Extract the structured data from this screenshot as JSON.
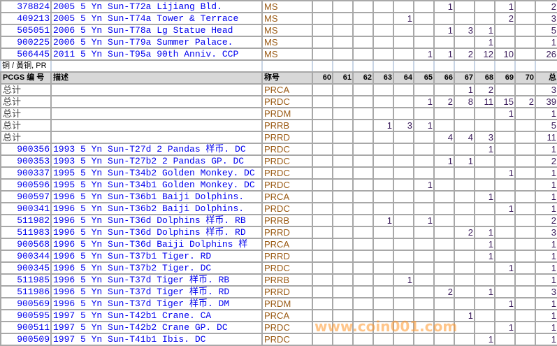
{
  "grades": [
    "60",
    "61",
    "62",
    "63",
    "64",
    "65",
    "66",
    "67",
    "68",
    "69",
    "70"
  ],
  "top_rows": [
    {
      "id": "378824",
      "desc": "2005 5 Yn Sun-T72a Lijiang Bld.",
      "grade": "MS",
      "counts": {
        "66": "1",
        "69": "1"
      },
      "total": "2"
    },
    {
      "id": "409213",
      "desc": "2005 5 Yn Sun-T74a Tower & Terrace",
      "grade": "MS",
      "counts": {
        "64": "1",
        "69": "2"
      },
      "total": "3"
    },
    {
      "id": "505051",
      "desc": "2006 5 Yn Sun-T78a Lg Statue Head",
      "grade": "MS",
      "counts": {
        "66": "1",
        "67": "3",
        "68": "1"
      },
      "total": "5"
    },
    {
      "id": "900225",
      "desc": "2006 5 Yn Sun-T79a Summer Palace.",
      "grade": "MS",
      "counts": {
        "68": "1"
      },
      "total": "1"
    },
    {
      "id": "506445",
      "desc": "2011 5 Yn Sun-T95a 90th Anniv. CCP",
      "grade": "MS",
      "counts": {
        "65": "1",
        "66": "1",
        "67": "2",
        "68": "12",
        "69": "10"
      },
      "total": "26"
    }
  ],
  "section_label": "铜 / 黃铜, PR",
  "header": {
    "id": "PCGS 编 号",
    "desc": "描述",
    "grade": "称号",
    "total": "总"
  },
  "summary_rows": [
    {
      "label": "总计",
      "grade": "PRCA",
      "counts": {
        "67": "1",
        "68": "2"
      },
      "total": "3"
    },
    {
      "label": "总计",
      "grade": "PRDC",
      "counts": {
        "65": "1",
        "66": "2",
        "67": "8",
        "68": "11",
        "69": "15",
        "70": "2"
      },
      "total": "39"
    },
    {
      "label": "总计",
      "grade": "PRDM",
      "counts": {
        "69": "1"
      },
      "total": "1"
    },
    {
      "label": "总计",
      "grade": "PRRB",
      "counts": {
        "63": "1",
        "64": "3",
        "65": "1"
      },
      "total": "5"
    },
    {
      "label": "总计",
      "grade": "PRRD",
      "counts": {
        "66": "4",
        "67": "4",
        "68": "3"
      },
      "total": "11"
    }
  ],
  "rows": [
    {
      "id": "900356",
      "desc": "1993 5 Yn Sun-T27d 2 Pandas 样币. DC",
      "grade": "PRDC",
      "counts": {
        "68": "1"
      },
      "total": "1"
    },
    {
      "id": "900353",
      "desc": "1993 5 Yn Sun-T27b2 2 Pandas GP. DC",
      "grade": "PRDC",
      "counts": {
        "66": "1",
        "67": "1"
      },
      "total": "2"
    },
    {
      "id": "900337",
      "desc": "1995 5 Yn Sun-T34b2 Golden Monkey. DC",
      "grade": "PRDC",
      "counts": {
        "69": "1"
      },
      "total": "1"
    },
    {
      "id": "900596",
      "desc": "1995 5 Yn Sun-T34b1 Golden Monkey. DC",
      "grade": "PRDC",
      "counts": {
        "65": "1"
      },
      "total": "1"
    },
    {
      "id": "900597",
      "desc": "1996 5 Yn Sun-T36b1 Baiji Dolphins.",
      "grade": "PRCA",
      "counts": {
        "68": "1"
      },
      "total": "1"
    },
    {
      "id": "900341",
      "desc": "1996 5 Yn Sun-T36b2 Baiji Dolphins.",
      "grade": "PRDC",
      "counts": {
        "69": "1"
      },
      "total": "1"
    },
    {
      "id": "511982",
      "desc": "1996 5 Yn Sun-T36d Dolphins 样币. RB",
      "grade": "PRRB",
      "counts": {
        "63": "1",
        "65": "1"
      },
      "total": "2"
    },
    {
      "id": "511983",
      "desc": "1996 5 Yn Sun-T36d Dolphins 样币. RD",
      "grade": "PRRD",
      "counts": {
        "67": "2",
        "68": "1"
      },
      "total": "3"
    },
    {
      "id": "900568",
      "desc": "1996 5 Yn Sun-T36d Baiji Dolphins 样",
      "grade": "PRCA",
      "counts": {
        "68": "1"
      },
      "total": "1"
    },
    {
      "id": "900344",
      "desc": "1996 5 Yn Sun-T37b1 Tiger. RD",
      "grade": "PRRD",
      "counts": {
        "68": "1"
      },
      "total": "1"
    },
    {
      "id": "900345",
      "desc": "1996 5 Yn Sun-T37b2 Tiger. DC",
      "grade": "PRDC",
      "counts": {
        "69": "1"
      },
      "total": "1"
    },
    {
      "id": "511985",
      "desc": "1996 5 Yn Sun-T37d Tiger 样币. RB",
      "grade": "PRRB",
      "counts": {
        "64": "1"
      },
      "total": "1"
    },
    {
      "id": "511986",
      "desc": "1996 5 Yn Sun-T37d Tiger 样币. RD",
      "grade": "PRRD",
      "counts": {
        "66": "2",
        "68": "1"
      },
      "total": "3"
    },
    {
      "id": "900569",
      "desc": "1996 5 Yn Sun-T37d Tiger 样币. DM",
      "grade": "PRDM",
      "counts": {
        "69": "1"
      },
      "total": "1"
    },
    {
      "id": "900595",
      "desc": "1997 5 Yn Sun-T42b1 Crane. CA",
      "grade": "PRCA",
      "counts": {
        "67": "1"
      },
      "total": "1"
    },
    {
      "id": "900511",
      "desc": "1997 5 Yn Sun-T42b2 Crane GP. DC",
      "grade": "PRDC",
      "counts": {
        "69": "1"
      },
      "total": "1"
    },
    {
      "id": "900509",
      "desc": "1997 5 Yn Sun-T41b1 Ibis. DC",
      "grade": "PRDC",
      "counts": {
        "68": "1"
      },
      "total": "1"
    }
  ],
  "watermark": "www.coin001.com",
  "colors": {
    "link": "#0000ee",
    "grade": "#9a5a14",
    "header_bg": "#d8d8d8",
    "grid": "#a8a8a8"
  }
}
